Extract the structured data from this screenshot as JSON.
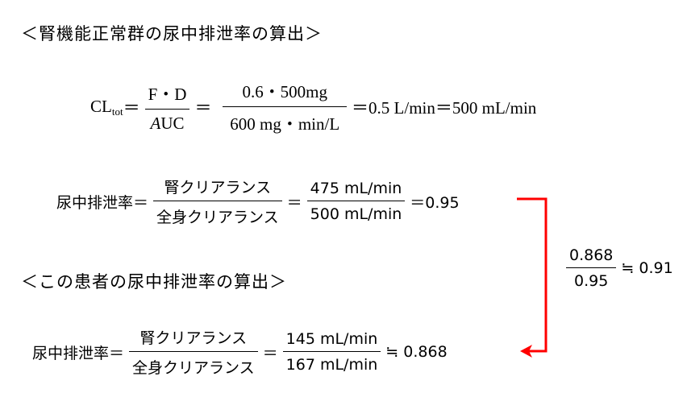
{
  "section1": {
    "heading": "＜腎機能正常群の尿中排泄率の算出＞",
    "cl_eq": {
      "lhs": "CL",
      "lhs_sub": "tot",
      "eq": "＝",
      "frac1_num": "F・D",
      "frac1_den_italic": "A",
      "frac1_den": "UC",
      "eq2": "＝",
      "frac2_num": "0.6・500mg",
      "frac2_den": "600 mg・min/L",
      "result": "＝0.5 L/min＝500 mL/min"
    },
    "excretion_eq": {
      "lhs": "尿中排泄率＝",
      "frac1_num": "腎クリアランス",
      "frac1_den": "全身クリアランス",
      "eq": "＝",
      "frac2_num": "475 mL/min",
      "frac2_den": "500 mL/min",
      "result": "＝0.95"
    }
  },
  "ratio": {
    "num": "0.868",
    "den": "0.95",
    "result": "≒ 0.91"
  },
  "section2": {
    "heading": "＜この患者の尿中排泄率の算出＞",
    "excretion_eq": {
      "lhs": "尿中排泄率＝",
      "frac1_num": "腎クリアランス",
      "frac1_den": "全身クリアランス",
      "eq": "＝",
      "frac2_num": "145 mL/min",
      "frac2_den": "167 mL/min",
      "result": "≒ 0.868"
    }
  },
  "colors": {
    "arrow": "#ff0000"
  }
}
